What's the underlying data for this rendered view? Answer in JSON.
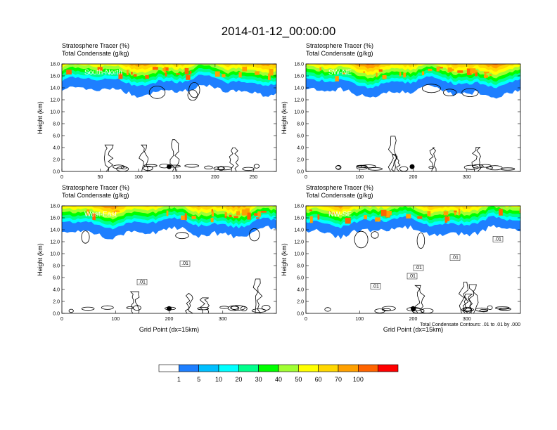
{
  "title": "2014-01-12_00:00:00",
  "chart_data": [
    {
      "type": "heatmap",
      "panel_label": "South-North",
      "header_lines": [
        "Stratosphere Tracer   (%)",
        "Total Condensate   (g/kg)"
      ],
      "ylabel": "Height (km)",
      "xlabel": "",
      "xlim": [
        0,
        280
      ],
      "ylim": [
        0,
        18
      ],
      "xticks": [
        0,
        50,
        100,
        150,
        200,
        250
      ],
      "yticks": [
        "0.0",
        "2.0",
        "4.0",
        "6.0",
        "8.0",
        "10.0",
        "12.0",
        "14.0",
        "16.0",
        "18.0"
      ],
      "tracer_base_km": 14.6,
      "marker_x": 140,
      "contour_note": ""
    },
    {
      "type": "heatmap",
      "panel_label": "SW-NE",
      "header_lines": [
        "Stratosphere Tracer   (%)",
        "Total Condensate   (g/kg)"
      ],
      "ylabel": "Height (km)",
      "xlabel": "",
      "xlim": [
        0,
        400
      ],
      "ylim": [
        0,
        18
      ],
      "xticks": [
        0,
        100,
        200,
        300
      ],
      "yticks": [
        "0.0",
        "2.0",
        "4.0",
        "6.0",
        "8.0",
        "10.0",
        "12.0",
        "14.0",
        "16.0",
        "18.0"
      ],
      "tracer_base_km": 14.4,
      "marker_x": 198,
      "contour_note": ""
    },
    {
      "type": "heatmap",
      "panel_label": "West-East",
      "header_lines": [
        "Stratosphere Tracer   (%)",
        "Total Condensate   (g/kg)"
      ],
      "ylabel": "Height (km)",
      "xlabel": "Grid Point (dx=15km)",
      "xlim": [
        0,
        400
      ],
      "ylim": [
        0,
        18
      ],
      "xticks": [
        0,
        100,
        200,
        300
      ],
      "yticks": [
        "0.0",
        "2.0",
        "4.0",
        "6.0",
        "8.0",
        "10.0",
        "12.0",
        "14.0",
        "16.0",
        "18.0"
      ],
      "tracer_base_km": 14.6,
      "marker_x": 200,
      "contour_labels": [
        ".01",
        ".01"
      ],
      "contour_note": ""
    },
    {
      "type": "heatmap",
      "panel_label": "NW-SE",
      "header_lines": [
        "Stratosphere Tracer   (%)",
        "Total Condensate   (g/kg)"
      ],
      "ylabel": "Height (km)",
      "xlabel": "Grid Point (dx=15km)",
      "xlim": [
        0,
        400
      ],
      "ylim": [
        0,
        18
      ],
      "xticks": [
        0,
        100,
        200,
        300
      ],
      "yticks": [
        "0.0",
        "2.0",
        "4.0",
        "6.0",
        "8.0",
        "10.0",
        "12.0",
        "14.0",
        "16.0",
        "18.0"
      ],
      "tracer_base_km": 14.8,
      "marker_x": 200,
      "contour_labels": [
        ".01",
        ".01",
        ".01",
        ".01",
        ".01"
      ],
      "contour_note": "Total Condensate Contours: .01 to .01 by .000"
    }
  ],
  "colorbar": {
    "labels": [
      "1",
      "5",
      "10",
      "20",
      "30",
      "40",
      "50",
      "60",
      "70",
      "100"
    ],
    "colors": [
      "#ffffff",
      "#1e7fff",
      "#00bfff",
      "#00ffff",
      "#00ff8c",
      "#00ff00",
      "#a0ff32",
      "#ffff00",
      "#ffd700",
      "#ffa000",
      "#ff6400",
      "#ff0000"
    ]
  }
}
